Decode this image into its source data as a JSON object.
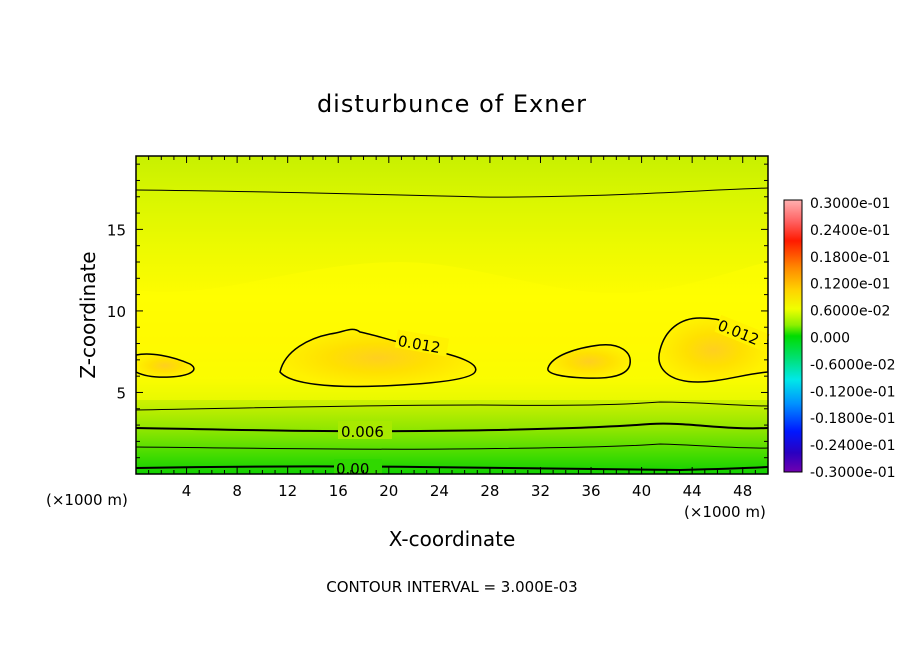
{
  "chart_data": {
    "type": "heatmap",
    "title": "disturbunce of Exner",
    "xlabel": "X-coordinate",
    "ylabel": "Z-coordinate",
    "x_unit": "(×1000 m)",
    "xlim": [
      0,
      50
    ],
    "ylim": [
      0,
      19.5
    ],
    "xticks": [
      4,
      8,
      12,
      16,
      20,
      24,
      28,
      32,
      36,
      40,
      44,
      48
    ],
    "yticks": [
      5,
      10,
      15
    ],
    "colorbar": {
      "labels": [
        "0.3000e-01",
        "0.2400e-01",
        "0.1800e-01",
        "0.1200e-01",
        "0.6000e-02",
        "0.000",
        "-0.6000e-02",
        "-0.1200e-01",
        "-0.1800e-01",
        "-0.2400e-01",
        "-0.3000e-01"
      ],
      "range": [
        -0.03,
        0.03
      ]
    },
    "contour_labels": [
      {
        "text": "0.012",
        "x": 22,
        "z": 7.8
      },
      {
        "text": "0.012",
        "x": 47,
        "z": 8.2
      },
      {
        "text": "0.006",
        "x": 18,
        "z": 2.6
      },
      {
        "text": "0.00",
        "x": 17,
        "z": 0.4
      }
    ],
    "contour_interval_note": "CONTOUR INTERVAL = 3.000E-03"
  }
}
